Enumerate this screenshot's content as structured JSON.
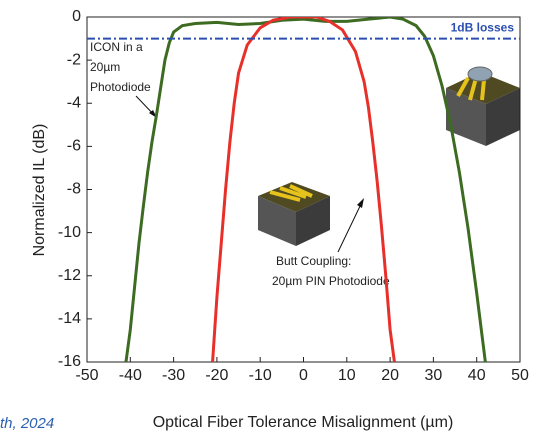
{
  "chart_data": {
    "type": "line",
    "xlabel": "Optical Fiber Tolerance Misalignment (µm)",
    "ylabel": "Normalized IL (dB)",
    "xlim": [
      -50,
      50
    ],
    "xticks": [
      -50,
      -40,
      -30,
      -20,
      -10,
      0,
      10,
      20,
      30,
      40,
      50
    ],
    "ylim": [
      -16,
      0
    ],
    "yticks": [
      -16,
      -14,
      -12,
      -10,
      -8,
      -6,
      -4,
      -2,
      0
    ],
    "series": [
      {
        "color": "#3d6b22",
        "x": [
          -41,
          -40,
          -39,
          -38,
          -37,
          -36,
          -35,
          -34,
          -33,
          -32,
          -31,
          -30,
          -28,
          -25,
          -20,
          -15,
          -10,
          -5,
          0,
          5,
          10,
          15,
          20,
          23,
          26,
          28,
          30,
          32,
          34,
          36,
          38,
          40,
          42
        ],
        "values": [
          -16,
          -14.5,
          -12.5,
          -10.5,
          -8.8,
          -7.2,
          -5.8,
          -4.6,
          -3.3,
          -2,
          -1.2,
          -0.7,
          -0.4,
          -0.3,
          -0.25,
          -0.35,
          -0.3,
          -0.15,
          -0.1,
          -0.2,
          -0.2,
          -0.1,
          0,
          -0.1,
          -0.4,
          -0.9,
          -1.8,
          -3.2,
          -5,
          -7.2,
          -9.8,
          -12.8,
          -16
        ]
      },
      {
        "color": "#e8302a",
        "x": [
          -21,
          -20,
          -19,
          -18,
          -17,
          -16,
          -15,
          -13,
          -10,
          -7,
          -3,
          0,
          3,
          6,
          9,
          12,
          14,
          15,
          16,
          17,
          18,
          19,
          20,
          21
        ],
        "values": [
          -16,
          -13,
          -10.5,
          -8,
          -5.8,
          -4,
          -2.6,
          -1.3,
          -0.5,
          -0.15,
          0,
          0,
          0,
          -0.2,
          -0.6,
          -1.6,
          -3,
          -4.2,
          -5.8,
          -7.6,
          -9.7,
          -12,
          -14.5,
          -16
        ]
      }
    ],
    "reference_line": {
      "value": -1,
      "label": "1dB losses",
      "color": "#2b4fb0"
    },
    "annotations": [
      {
        "lines": [
          "ICON in a",
          "20µm",
          "Photodiode"
        ]
      },
      {
        "lines": [
          "Butt Coupling:",
          "20µm PIN Photodiode"
        ]
      }
    ],
    "footer_fragment": "th, 2024"
  }
}
